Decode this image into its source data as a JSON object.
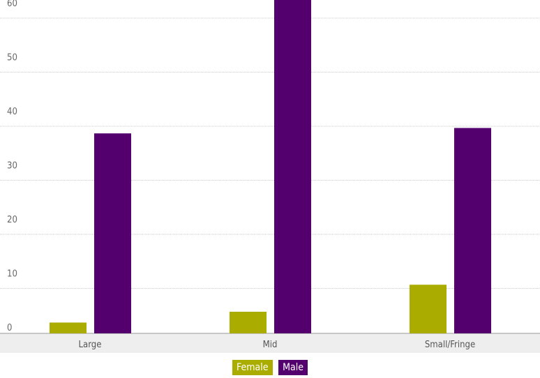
{
  "chart_data": {
    "type": "bar",
    "title": "",
    "xlabel": "",
    "ylabel": "",
    "categories": [
      "Large",
      "Mid",
      "Small/Fringe"
    ],
    "series": [
      {
        "name": "Female",
        "color": "#aaac00",
        "values": [
          2,
          4,
          9
        ]
      },
      {
        "name": "Male",
        "color": "#53006e",
        "values": [
          37,
          63,
          38
        ]
      }
    ],
    "yticks": [
      0,
      10,
      20,
      30,
      40,
      50,
      60
    ],
    "ylim": [
      0,
      61.5
    ],
    "grid": true,
    "legend": "bottom-center"
  }
}
